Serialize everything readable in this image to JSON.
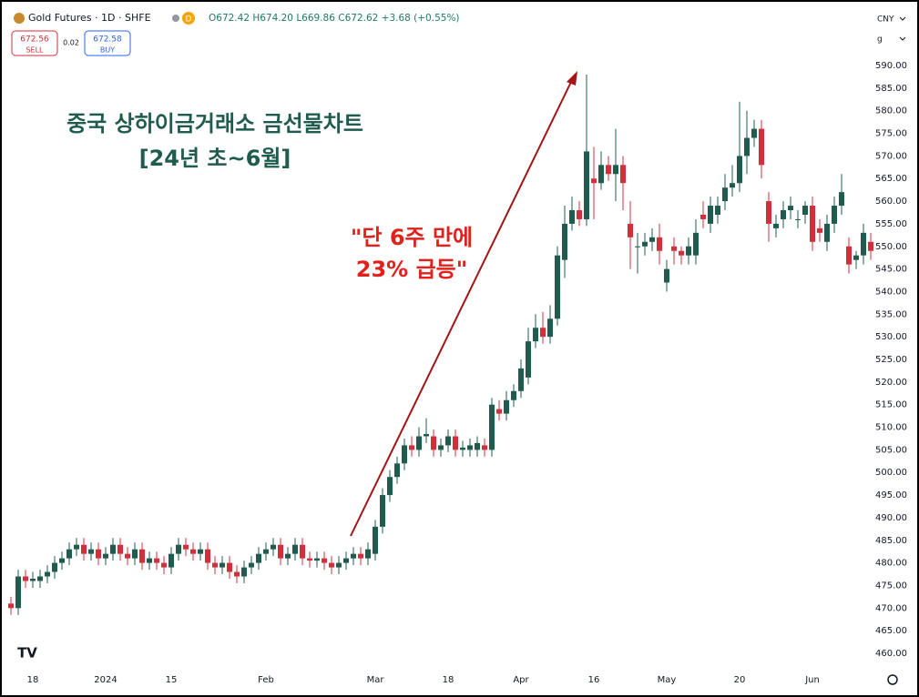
{
  "toolbar": {
    "symbol": "Gold Futures · 1D · SHFE",
    "delay": "D",
    "ohlc": "O672.42 H674.20 L669.86 C672.62 +3.68 (+0.55%)",
    "sell_price": "672.56",
    "sell": "SELL",
    "spread": "0.02",
    "buy_price": "672.58",
    "buy": "BUY",
    "currency": "CNY",
    "unit": "g"
  },
  "chart_data": {
    "type": "candlestick",
    "title": "중국 상하이금거래소 금선물차트",
    "subtitle": "[24년 초~6월]",
    "annotations": [
      "\"단 6주 만에",
      "23% 급등\""
    ],
    "up_color": "#1f5c4d",
    "down_color": "#d32f3a",
    "grid": false,
    "categories": [
      null,
      null,
      null,
      "18",
      null,
      null,
      null,
      null,
      null,
      null,
      null,
      null,
      null,
      "2024",
      null,
      null,
      null,
      null,
      null,
      null,
      null,
      null,
      "15",
      null,
      null,
      null,
      null,
      null,
      null,
      null,
      null,
      null,
      null,
      null,
      null,
      "Feb",
      null,
      null,
      null,
      null,
      null,
      null,
      null,
      null,
      null,
      null,
      null,
      null,
      null,
      null,
      "Mar",
      null,
      null,
      null,
      null,
      null,
      null,
      null,
      null,
      null,
      "18",
      null,
      null,
      null,
      null,
      null,
      null,
      null,
      null,
      null,
      "Apr",
      null,
      null,
      null,
      null,
      null,
      null,
      null,
      null,
      null,
      "16",
      null,
      null,
      null,
      null,
      null,
      null,
      null,
      null,
      null,
      "May",
      null,
      null,
      null,
      null,
      null,
      null,
      null,
      null,
      null,
      "20",
      null,
      null,
      null,
      null,
      null,
      null,
      null,
      null,
      null,
      "Jun",
      null,
      null,
      null,
      null,
      null,
      null,
      null,
      null
    ],
    "open": [
      471,
      470,
      477,
      476,
      476,
      477,
      478,
      480,
      481,
      483,
      484,
      482,
      483,
      481,
      482,
      484,
      482,
      481,
      483,
      480,
      481,
      480,
      479,
      482,
      484,
      483,
      482,
      483,
      480,
      479,
      480,
      478,
      477,
      479,
      480,
      482,
      483,
      484,
      481,
      482,
      484,
      481,
      480.5,
      481,
      480,
      479,
      480,
      481,
      482,
      481,
      482,
      488,
      495,
      499,
      502,
      506,
      505,
      508,
      508,
      505,
      506,
      508,
      505,
      505,
      505,
      506,
      505,
      514,
      513,
      516,
      518,
      521,
      529,
      532,
      530,
      534,
      547,
      555,
      558,
      556,
      565,
      564,
      568,
      566,
      568,
      555,
      550,
      550,
      551,
      552,
      542,
      550,
      549,
      548,
      548,
      557,
      555,
      557,
      560,
      563,
      564,
      570,
      574,
      576,
      560,
      554,
      556,
      558,
      556,
      557,
      559,
      554,
      551,
      555,
      559,
      550,
      547,
      548,
      551
    ],
    "high": [
      472.5,
      478.5,
      478.5,
      478,
      478.5,
      479.5,
      481.5,
      482.5,
      484.5,
      485.5,
      485.5,
      484.5,
      484.5,
      483.5,
      485.5,
      485.5,
      483.5,
      484.5,
      484.5,
      482.5,
      482.5,
      481.5,
      483.5,
      485.5,
      485.5,
      484.5,
      484.5,
      484.5,
      481.5,
      481.5,
      481.5,
      479.5,
      480.5,
      481.5,
      483.5,
      484.5,
      485.5,
      485.5,
      483.5,
      485.5,
      485.5,
      482.5,
      482.5,
      482.5,
      481.5,
      481.5,
      482.5,
      483.5,
      483.5,
      484.5,
      489.5,
      496.5,
      500.5,
      503.5,
      507.5,
      508,
      510,
      512,
      509.5,
      507.5,
      509.5,
      509.5,
      507,
      507.5,
      508,
      507.5,
      516.5,
      516,
      518,
      519.5,
      525,
      532,
      535,
      535.5,
      537,
      550,
      559,
      561,
      560,
      588,
      572,
      571,
      570,
      576,
      570,
      560,
      553,
      553,
      554,
      555,
      547,
      552,
      550,
      552,
      556,
      560,
      561,
      561,
      566,
      568,
      582,
      580,
      578,
      578,
      562,
      557,
      560,
      561,
      558,
      560,
      561,
      556,
      557,
      561,
      566,
      552,
      549,
      555,
      553
    ],
    "low": [
      468.5,
      468.5,
      474.5,
      474.5,
      474.5,
      475.5,
      476.5,
      478.5,
      479.5,
      481.5,
      480.5,
      480.5,
      479.5,
      479.5,
      480.5,
      480.5,
      479.5,
      479.5,
      478.5,
      478.5,
      478.5,
      477.5,
      477.5,
      480.5,
      481.5,
      480.5,
      480.5,
      478.5,
      477.5,
      477.5,
      476.5,
      475.5,
      475.5,
      477.5,
      478.5,
      480.5,
      481.5,
      479.5,
      479.5,
      480.5,
      479.5,
      479,
      479,
      478.5,
      477.5,
      477.5,
      478.5,
      479.5,
      479.5,
      479.5,
      480.5,
      486.5,
      493.5,
      497.5,
      500.5,
      503.5,
      503.5,
      506.5,
      503.5,
      503.5,
      504.5,
      503.5,
      503.5,
      503.5,
      503.5,
      503.5,
      503.5,
      511.5,
      511.5,
      514.5,
      516.5,
      519.5,
      527.5,
      528.5,
      528.5,
      532.5,
      543,
      553.5,
      554.5,
      554.5,
      556,
      562.5,
      564.5,
      560,
      558,
      545,
      544,
      548,
      549,
      546,
      540,
      546,
      546,
      546,
      546,
      554,
      553,
      555,
      558,
      561,
      562,
      566,
      572,
      565,
      551,
      552,
      554,
      556,
      554,
      555,
      549,
      551,
      549,
      553,
      557,
      544,
      545,
      546,
      547
    ],
    "close": [
      470,
      477,
      476,
      476.5,
      477,
      478,
      480,
      481,
      483,
      484,
      482,
      483,
      481,
      482,
      484,
      482,
      481,
      483,
      480,
      481,
      480,
      479,
      482,
      484,
      483,
      482,
      483,
      480,
      479,
      480,
      478,
      477,
      479,
      480,
      482,
      483,
      484,
      481,
      482,
      484,
      481,
      480.5,
      481,
      480,
      479,
      480,
      481,
      482,
      481,
      483,
      488,
      495,
      499,
      502,
      506,
      505,
      508,
      508.5,
      505,
      506,
      508,
      505,
      505.5,
      506,
      506.5,
      505,
      515,
      513,
      516,
      518,
      523,
      529,
      532,
      530,
      534,
      548,
      555,
      558,
      556,
      571,
      564,
      568,
      566,
      568,
      564,
      552,
      550,
      551,
      552,
      549,
      545,
      549,
      548,
      550,
      553,
      556,
      559,
      559,
      563,
      564,
      570,
      574,
      576,
      568,
      555,
      555,
      558,
      559,
      556,
      559,
      551,
      553,
      555,
      559,
      562,
      546,
      548,
      553,
      549
    ],
    "ylim": [
      460,
      590
    ],
    "yticks": [
      {
        "value": 460,
        "label": "460.00"
      },
      {
        "value": 465,
        "label": "465.00"
      },
      {
        "value": 470,
        "label": "470.00"
      },
      {
        "value": 475,
        "label": "475.00"
      },
      {
        "value": 480,
        "label": "480.00"
      },
      {
        "value": 485,
        "label": "485.00"
      },
      {
        "value": 490,
        "label": "490.00"
      },
      {
        "value": 495,
        "label": "495.00"
      },
      {
        "value": 500,
        "label": "500.00"
      },
      {
        "value": 505,
        "label": "505.00"
      },
      {
        "value": 510,
        "label": "510.00"
      },
      {
        "value": 515,
        "label": "515.00"
      },
      {
        "value": 520,
        "label": "520.00"
      },
      {
        "value": 525,
        "label": "525.00"
      },
      {
        "value": 530,
        "label": "530.00"
      },
      {
        "value": 535,
        "label": "535.00"
      },
      {
        "value": 540,
        "label": "540.00"
      },
      {
        "value": 545,
        "label": "545.00"
      },
      {
        "value": 550,
        "label": "550.00"
      },
      {
        "value": 555,
        "label": "555.00"
      },
      {
        "value": 560,
        "label": "560.00"
      },
      {
        "value": 565,
        "label": "565.00"
      },
      {
        "value": 570,
        "label": "570.00"
      },
      {
        "value": 575,
        "label": "575.00"
      },
      {
        "value": 580,
        "label": "580.00"
      },
      {
        "value": 585,
        "label": "585.00"
      },
      {
        "value": 590,
        "label": "590.00"
      }
    ]
  }
}
